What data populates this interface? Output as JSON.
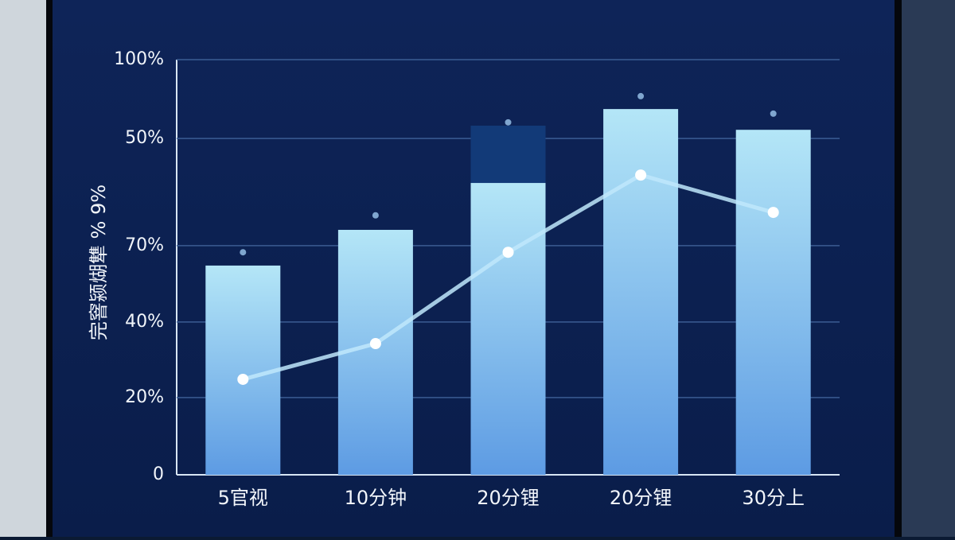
{
  "chart_data": {
    "type": "bar",
    "y_label": "完窨颍煳犨 % 9%",
    "categories": [
      "5官视",
      "10分钟",
      "20分锂",
      "20分锂",
      "30分上"
    ],
    "values": [
      50.4,
      59,
      70.3,
      88.1,
      83.1
    ],
    "stack_values": [
      null,
      null,
      13.8,
      null,
      null
    ],
    "line_values": [
      23,
      31.6,
      53.6,
      72.2,
      63.2
    ],
    "dot_values": [
      53.6,
      62.5,
      84.9,
      91.2,
      87
    ],
    "color": "#8fd0ef",
    "stack_color": "#123a78",
    "line_color": "#bfe8fb",
    "ylim": [
      0,
      100
    ],
    "yticks": [
      0,
      {
        "value": 18.6,
        "label": "20%"
      },
      {
        "value": 36.8,
        "label": "40%"
      },
      {
        "value": 55.2,
        "label": "70%"
      },
      {
        "value": 81,
        "label": "50%"
      },
      {
        "value": 100,
        "label": "100%"
      }
    ],
    "grid": true
  }
}
